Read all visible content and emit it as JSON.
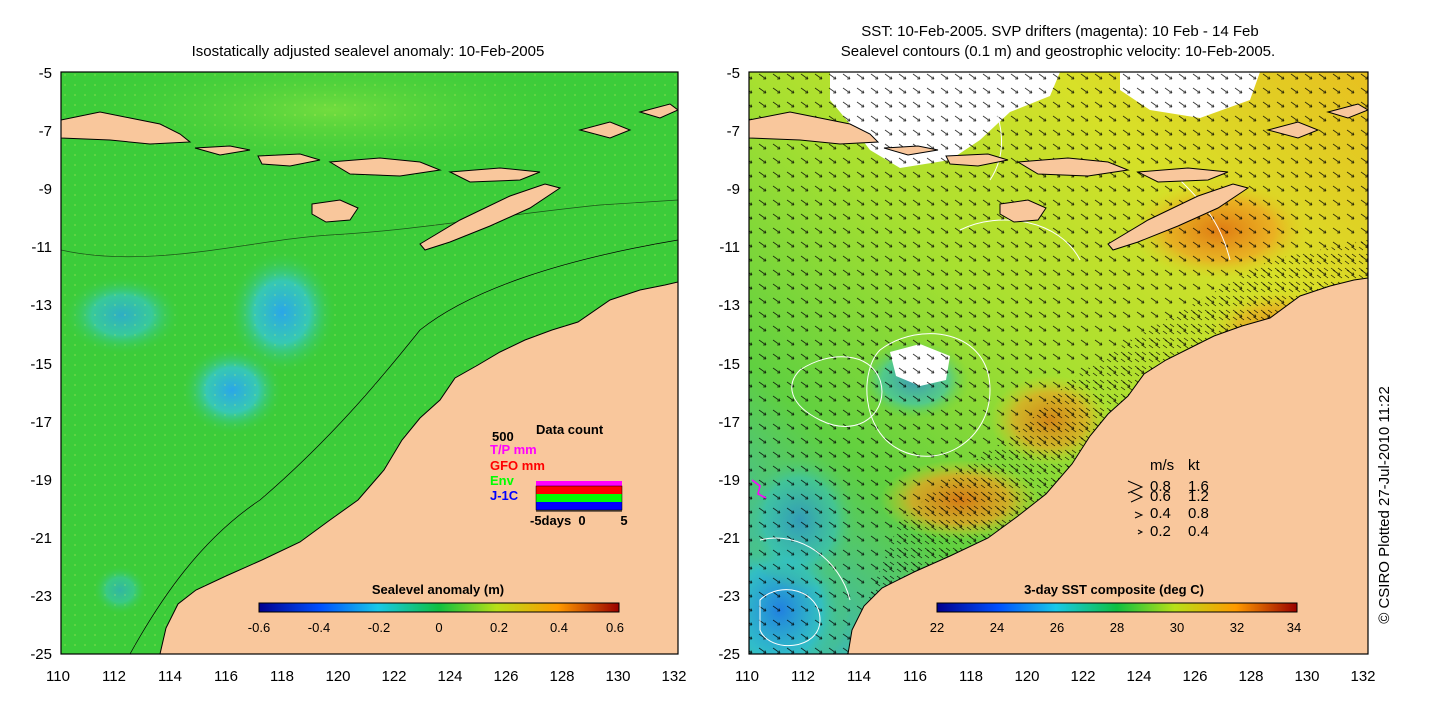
{
  "left_panel": {
    "title": "Isostatically adjusted sealevel anomaly: 10-Feb-2005",
    "x_ticks": [
      "110",
      "112",
      "114",
      "116",
      "118",
      "120",
      "122",
      "124",
      "126",
      "128",
      "130",
      "132"
    ],
    "y_ticks": [
      "-5",
      "-7",
      "-9",
      "-11",
      "-13",
      "-15",
      "-17",
      "-19",
      "-21",
      "-23",
      "-25"
    ],
    "colorbar": {
      "title": "Sealevel anomaly (m)",
      "labels": [
        "-0.6",
        "-0.4",
        "-0.2",
        "0",
        "0.2",
        "0.4",
        "0.6"
      ],
      "range": [
        -0.6,
        0.6
      ]
    },
    "data_count": {
      "title": "Data count",
      "max_label": "500",
      "legend": [
        {
          "label": "T/P mm",
          "color": "#ff00ff"
        },
        {
          "label": "GFO mm",
          "color": "#ff0000"
        },
        {
          "label": "Env",
          "color": "#00ff00"
        },
        {
          "label": "J-1C",
          "color": "#0000ff"
        }
      ],
      "x_labels": [
        "-5days",
        "0",
        "5"
      ]
    }
  },
  "right_panel": {
    "title_line1": "SST: 10-Feb-2005. SVP drifters (magenta): 10 Feb - 14 Feb",
    "title_line2": "Sealevel contours (0.1 m) and geostrophic velocity: 10-Feb-2005.",
    "x_ticks": [
      "110",
      "112",
      "114",
      "116",
      "118",
      "120",
      "122",
      "124",
      "126",
      "128",
      "130",
      "132"
    ],
    "y_ticks": [
      "-5",
      "-7",
      "-9",
      "-11",
      "-13",
      "-15",
      "-17",
      "-19",
      "-21",
      "-23",
      "-25"
    ],
    "colorbar": {
      "title": "3-day SST composite (deg C)",
      "labels": [
        "22",
        "24",
        "26",
        "28",
        "30",
        "32",
        "34"
      ],
      "range": [
        22,
        34
      ]
    },
    "velocity_legend": {
      "header_ms": "m/s",
      "header_kt": "kt",
      "rows": [
        {
          "ms": "0.8",
          "kt": "1.6"
        },
        {
          "ms": "0.6",
          "kt": "1.2"
        },
        {
          "ms": "0.4",
          "kt": "0.8"
        },
        {
          "ms": "0.2",
          "kt": "0.4"
        }
      ]
    }
  },
  "credit": "© CSIRO Plotted 27-Jul-2010 11:22",
  "colors": {
    "land": "#f9c79c",
    "ocean_sla": "#3ccc3a",
    "sst_warm": "#d9e02a",
    "sst_hot": "#f08c1a",
    "sst_cool": "#20a8e8"
  }
}
